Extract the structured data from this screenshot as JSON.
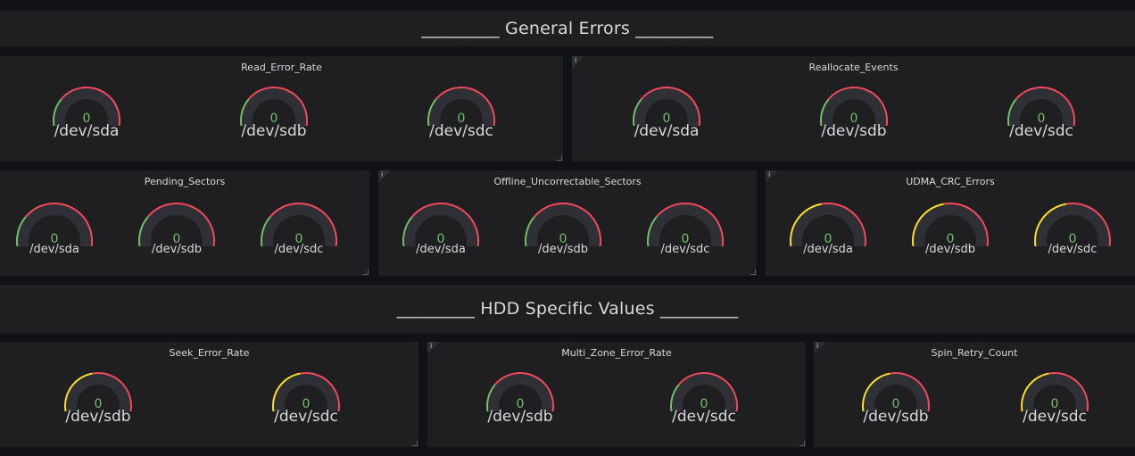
{
  "rows": [
    {
      "title": "_________ General Errors _________"
    },
    {
      "title": "_________ HDD Specific Values _________"
    }
  ],
  "panels": [
    {
      "title": "Read_Error_Rate",
      "info": "",
      "gauges": [
        {
          "value": "0",
          "label": "/dev/sda",
          "warn": false
        },
        {
          "value": "0",
          "label": "/dev/sdb",
          "warn": false
        },
        {
          "value": "0",
          "label": "/dev/sdc",
          "warn": false
        }
      ]
    },
    {
      "title": "Reallocate_Events",
      "info": "i",
      "gauges": [
        {
          "value": "0",
          "label": "/dev/sda",
          "warn": false
        },
        {
          "value": "0",
          "label": "/dev/sdb",
          "warn": false
        },
        {
          "value": "0",
          "label": "/dev/sdc",
          "warn": false
        }
      ]
    },
    {
      "title": "Pending_Sectors",
      "info": "",
      "gauges": [
        {
          "value": "0",
          "label": "/dev/sda",
          "warn": false
        },
        {
          "value": "0",
          "label": "/dev/sdb",
          "warn": false
        },
        {
          "value": "0",
          "label": "/dev/sdc",
          "warn": false
        }
      ]
    },
    {
      "title": "Offline_Uncorrectable_Sectors",
      "info": "i",
      "gauges": [
        {
          "value": "0",
          "label": "/dev/sda",
          "warn": false
        },
        {
          "value": "0",
          "label": "/dev/sdb",
          "warn": false
        },
        {
          "value": "0",
          "label": "/dev/sdc",
          "warn": false
        }
      ]
    },
    {
      "title": "UDMA_CRC_Errors",
      "info": "i",
      "gauges": [
        {
          "value": "0",
          "label": "/dev/sda",
          "warn": true
        },
        {
          "value": "0",
          "label": "/dev/sdb",
          "warn": true
        },
        {
          "value": "0",
          "label": "/dev/sdc",
          "warn": true
        }
      ]
    },
    {
      "title": "Seek_Error_Rate",
      "info": "",
      "gauges": [
        {
          "value": "0",
          "label": "/dev/sdb",
          "warn": true
        },
        {
          "value": "0",
          "label": "/dev/sdc",
          "warn": true
        }
      ]
    },
    {
      "title": "Multi_Zone_Error_Rate",
      "info": "i",
      "gauges": [
        {
          "value": "0",
          "label": "/dev/sdb",
          "warn": false
        },
        {
          "value": "0",
          "label": "/dev/sdc",
          "warn": false
        }
      ]
    },
    {
      "title": "Spin_Retry_Count",
      "info": "i",
      "gauges": [
        {
          "value": "0",
          "label": "/dev/sdb",
          "warn": true
        },
        {
          "value": "0",
          "label": "/dev/sdc",
          "warn": true
        }
      ]
    }
  ],
  "colors": {
    "ok": "#73bf69",
    "warn": "#fade2a",
    "critical": "#f2495c",
    "track": "#2f3035"
  }
}
